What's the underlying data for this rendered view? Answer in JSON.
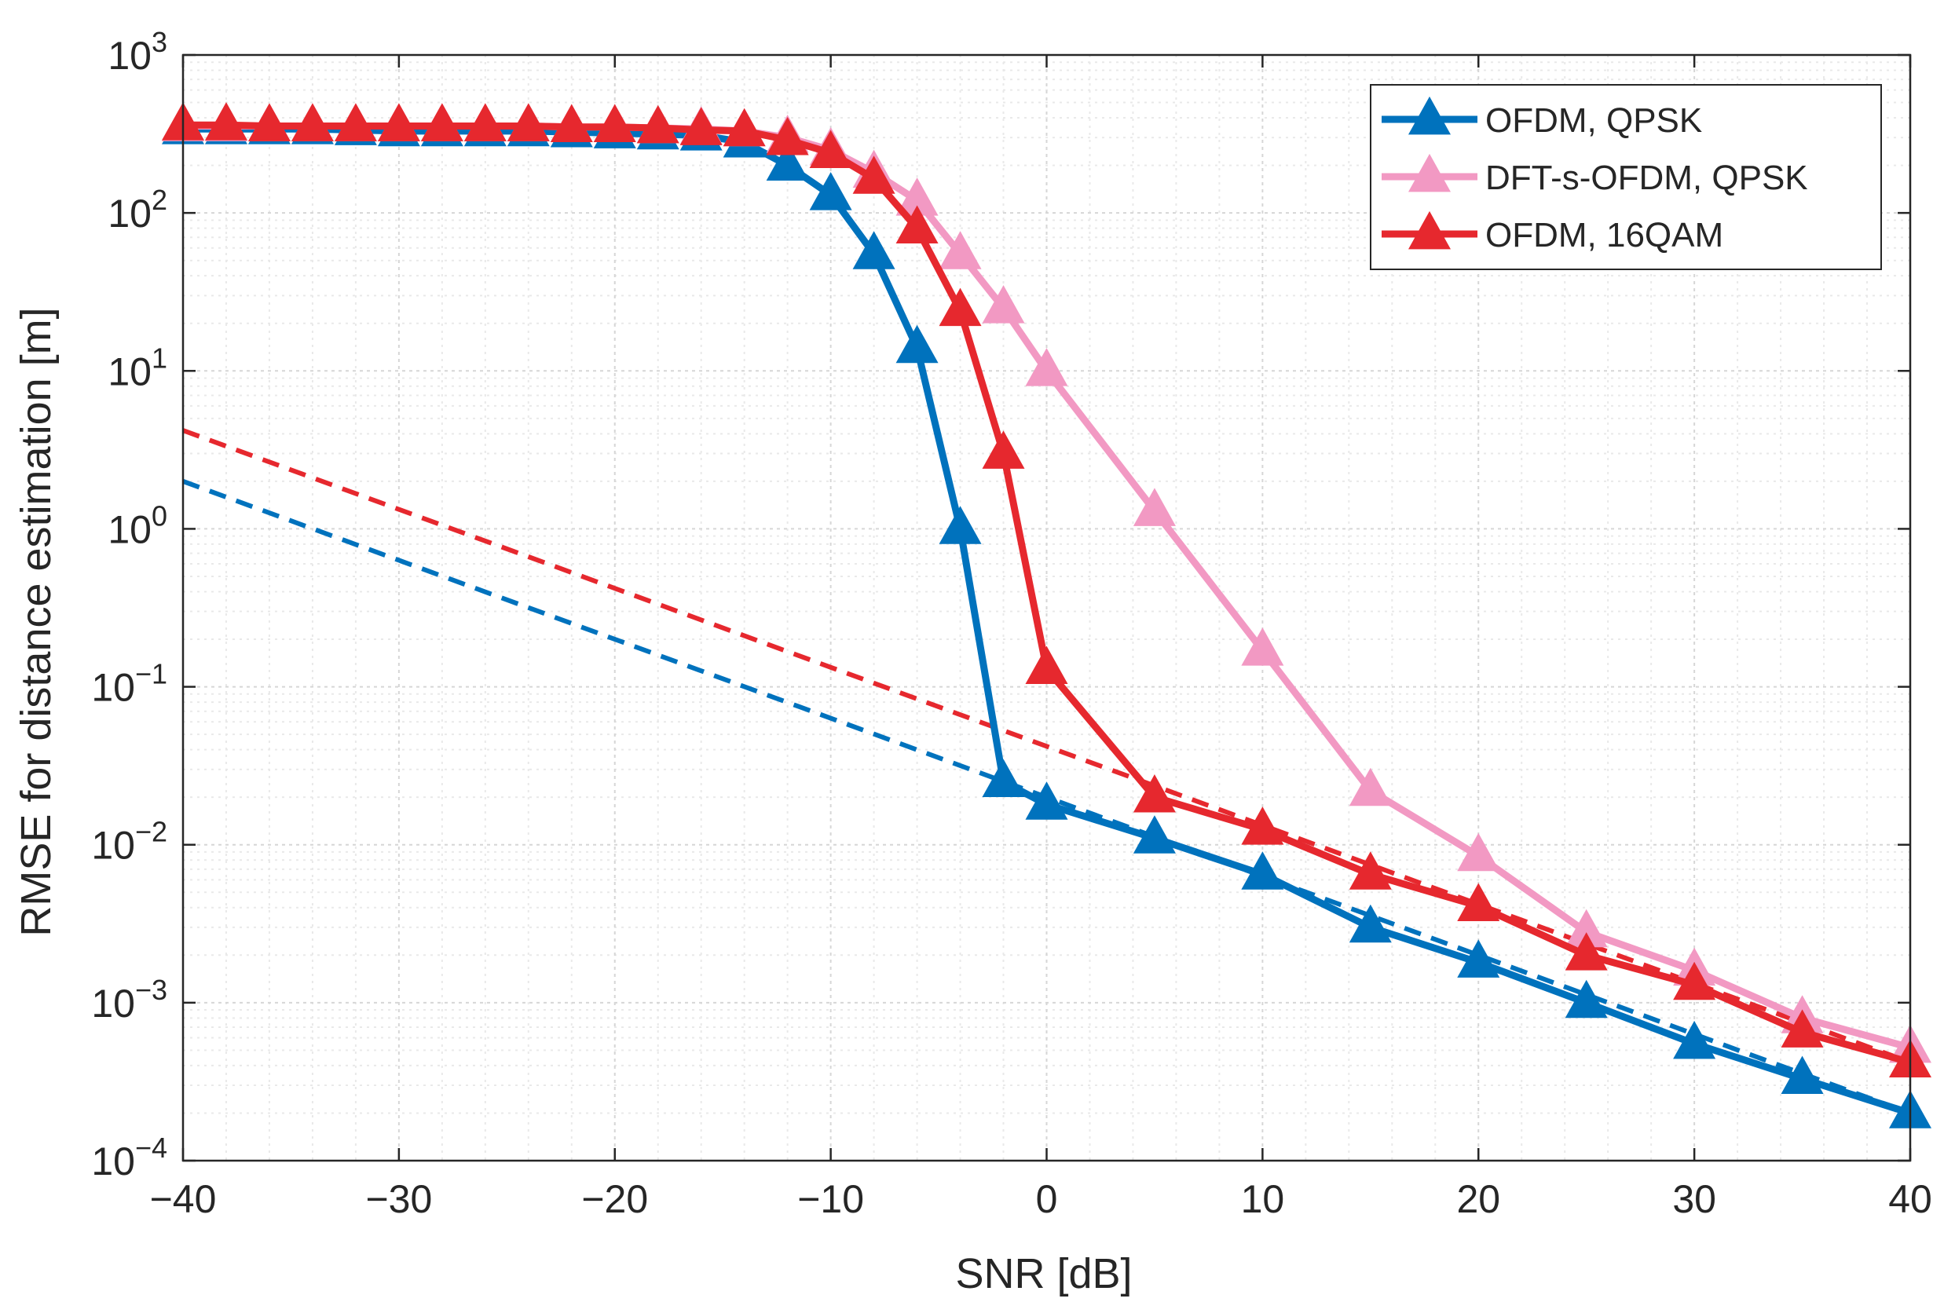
{
  "chart_data": {
    "type": "line",
    "title": "",
    "xlabel": "SNR [dB]",
    "ylabel": "RMSE for distance estimation [m]",
    "yscale": "log",
    "xlim": [
      -40,
      40
    ],
    "ylim": [
      0.0001,
      1000
    ],
    "grid": true,
    "minor_grid": true,
    "legend_position": "top-right",
    "x_ticks": [
      -40,
      -30,
      -20,
      -10,
      0,
      10,
      20,
      30,
      40
    ],
    "x_tick_labels": [
      "−40",
      "−30",
      "−20",
      "−10",
      "0",
      "10",
      "20",
      "30",
      "40"
    ],
    "y_ticks": [
      0.0001,
      0.001,
      0.01,
      0.1,
      1,
      10,
      100,
      1000
    ],
    "y_tick_labels": [
      {
        "base": "10",
        "exp": "−4"
      },
      {
        "base": "10",
        "exp": "−3"
      },
      {
        "base": "10",
        "exp": "−2"
      },
      {
        "base": "10",
        "exp": "−1"
      },
      {
        "base": "10",
        "exp": "0"
      },
      {
        "base": "10",
        "exp": "1"
      },
      {
        "base": "10",
        "exp": "2"
      },
      {
        "base": "10",
        "exp": "3"
      }
    ],
    "series": [
      {
        "name": "OFDM, QPSK",
        "color": "#0072bd",
        "line_style": "solid",
        "marker": "triangle",
        "x": [
          -40,
          -38,
          -36,
          -34,
          -32,
          -30,
          -28,
          -26,
          -24,
          -22,
          -20,
          -18,
          -16,
          -14,
          -12,
          -10,
          -8,
          -6,
          -4,
          -2,
          0,
          5,
          10,
          15,
          20,
          25,
          30,
          35,
          40
        ],
        "y": [
          340,
          340,
          340,
          340,
          335,
          330,
          330,
          330,
          330,
          325,
          320,
          315,
          310,
          280,
          200,
          130,
          55,
          14,
          1.0,
          0.025,
          0.018,
          0.011,
          0.0065,
          0.003,
          0.0018,
          0.001,
          0.00055,
          0.00033,
          0.0002
        ]
      },
      {
        "name": "DFT-s-OFDM, QPSK",
        "color": "#f299c3",
        "line_style": "solid",
        "marker": "triangle",
        "x": [
          -40,
          -38,
          -36,
          -34,
          -32,
          -30,
          -28,
          -26,
          -24,
          -22,
          -20,
          -18,
          -16,
          -14,
          -12,
          -10,
          -8,
          -6,
          -4,
          -2,
          0,
          5,
          10,
          15,
          20,
          25,
          30,
          35,
          40
        ],
        "y": [
          355,
          355,
          355,
          355,
          355,
          355,
          355,
          355,
          355,
          350,
          350,
          345,
          340,
          330,
          300,
          250,
          180,
          120,
          55,
          25,
          10,
          1.3,
          0.17,
          0.022,
          0.0085,
          0.0028,
          0.0016,
          0.0008,
          0.00052
        ]
      },
      {
        "name": "OFDM, 16QAM",
        "color": "#e6282e",
        "line_style": "solid",
        "marker": "triangle",
        "x": [
          -40,
          -38,
          -36,
          -34,
          -32,
          -30,
          -28,
          -26,
          -24,
          -22,
          -20,
          -18,
          -16,
          -14,
          -12,
          -10,
          -8,
          -6,
          -4,
          -2,
          0,
          5,
          10,
          15,
          20,
          25,
          30,
          35,
          40
        ],
        "y": [
          360,
          360,
          355,
          355,
          355,
          355,
          355,
          355,
          355,
          350,
          350,
          345,
          335,
          330,
          290,
          240,
          165,
          80,
          24,
          3.0,
          0.13,
          0.02,
          0.0125,
          0.0065,
          0.0041,
          0.002,
          0.0013,
          0.00065,
          0.00042
        ]
      },
      {
        "name": "",
        "color": "#0072bd",
        "line_style": "dashed",
        "marker": "none",
        "x": [
          -40,
          40
        ],
        "y": [
          2.0,
          0.0002
        ]
      },
      {
        "name": "",
        "color": "#e6282e",
        "line_style": "dashed",
        "marker": "none",
        "x": [
          -40,
          40
        ],
        "y": [
          4.2,
          0.00042
        ]
      }
    ],
    "colors": {
      "axis": "#262626",
      "major_grid": "#d6d6d6",
      "minor_grid": "#e9e9e9",
      "background": "#ffffff"
    }
  }
}
